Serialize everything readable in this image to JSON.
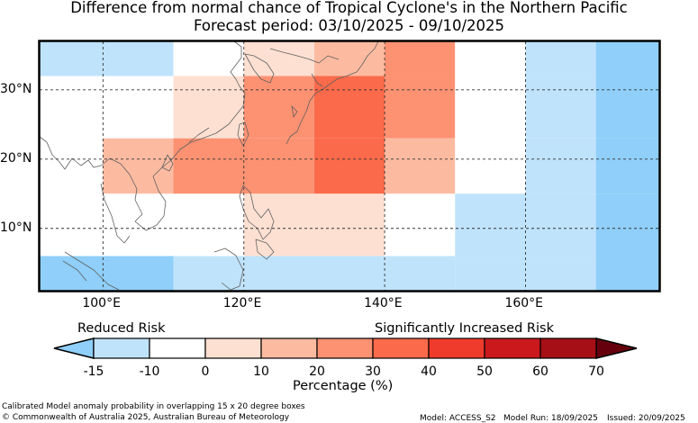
{
  "title": {
    "line1": "Difference from normal chance of Tropical Cyclone's in the Northern Pacific",
    "line2": "Forecast period: 03/10/2025 - 09/10/2025"
  },
  "map": {
    "lon_range": [
      91,
      179
    ],
    "lat_range": [
      1,
      37
    ],
    "lon_ticks": [
      {
        "value": 100,
        "label": "100°E"
      },
      {
        "value": 120,
        "label": "120°E"
      },
      {
        "value": 140,
        "label": "140°E"
      },
      {
        "value": 160,
        "label": "160°E"
      }
    ],
    "lat_ticks": [
      {
        "value": 10,
        "label": "10°N"
      },
      {
        "value": 20,
        "label": "20°N"
      },
      {
        "value": 30,
        "label": "30°N"
      }
    ],
    "cells": [
      {
        "lon": [
          91,
          110
        ],
        "lat": [
          32,
          37
        ],
        "pct": -10
      },
      {
        "lon": [
          110,
          120
        ],
        "lat": [
          32,
          37
        ],
        "pct": 0
      },
      {
        "lon": [
          120,
          130
        ],
        "lat": [
          32,
          37
        ],
        "pct": 10
      },
      {
        "lon": [
          130,
          140
        ],
        "lat": [
          32,
          37
        ],
        "pct": 20
      },
      {
        "lon": [
          140,
          150
        ],
        "lat": [
          32,
          37
        ],
        "pct": 30
      },
      {
        "lon": [
          150,
          160
        ],
        "lat": [
          32,
          37
        ],
        "pct": 0
      },
      {
        "lon": [
          160,
          170
        ],
        "lat": [
          32,
          37
        ],
        "pct": -10
      },
      {
        "lon": [
          170,
          179
        ],
        "lat": [
          32,
          37
        ],
        "pct": -15
      },
      {
        "lon": [
          91,
          100
        ],
        "lat": [
          23,
          32
        ],
        "pct": 0
      },
      {
        "lon": [
          100,
          110
        ],
        "lat": [
          23,
          32
        ],
        "pct": 0
      },
      {
        "lon": [
          110,
          120
        ],
        "lat": [
          23,
          32
        ],
        "pct": 10
      },
      {
        "lon": [
          120,
          130
        ],
        "lat": [
          23,
          32
        ],
        "pct": 30
      },
      {
        "lon": [
          130,
          140
        ],
        "lat": [
          23,
          32
        ],
        "pct": 40
      },
      {
        "lon": [
          140,
          150
        ],
        "lat": [
          23,
          32
        ],
        "pct": 30
      },
      {
        "lon": [
          150,
          160
        ],
        "lat": [
          23,
          32
        ],
        "pct": 0
      },
      {
        "lon": [
          160,
          170
        ],
        "lat": [
          23,
          32
        ],
        "pct": -10
      },
      {
        "lon": [
          170,
          179
        ],
        "lat": [
          23,
          32
        ],
        "pct": -15
      },
      {
        "lon": [
          91,
          100
        ],
        "lat": [
          15,
          23
        ],
        "pct": 0
      },
      {
        "lon": [
          100,
          110
        ],
        "lat": [
          15,
          23
        ],
        "pct": 20
      },
      {
        "lon": [
          110,
          130
        ],
        "lat": [
          15,
          23
        ],
        "pct": 30
      },
      {
        "lon": [
          130,
          140
        ],
        "lat": [
          15,
          23
        ],
        "pct": 40
      },
      {
        "lon": [
          140,
          150
        ],
        "lat": [
          15,
          23
        ],
        "pct": 20
      },
      {
        "lon": [
          150,
          160
        ],
        "lat": [
          15,
          23
        ],
        "pct": 0
      },
      {
        "lon": [
          160,
          170
        ],
        "lat": [
          15,
          23
        ],
        "pct": -10
      },
      {
        "lon": [
          170,
          179
        ],
        "lat": [
          15,
          23
        ],
        "pct": -15
      },
      {
        "lon": [
          91,
          110
        ],
        "lat": [
          6,
          15
        ],
        "pct": 0
      },
      {
        "lon": [
          110,
          120
        ],
        "lat": [
          6,
          15
        ],
        "pct": 0
      },
      {
        "lon": [
          120,
          140
        ],
        "lat": [
          6,
          15
        ],
        "pct": 10
      },
      {
        "lon": [
          140,
          150
        ],
        "lat": [
          6,
          15
        ],
        "pct": 0
      },
      {
        "lon": [
          150,
          160
        ],
        "lat": [
          6,
          15
        ],
        "pct": -5
      },
      {
        "lon": [
          160,
          170
        ],
        "lat": [
          6,
          15
        ],
        "pct": -10
      },
      {
        "lon": [
          170,
          179
        ],
        "lat": [
          6,
          15
        ],
        "pct": -15
      },
      {
        "lon": [
          91,
          110
        ],
        "lat": [
          1,
          6
        ],
        "pct": -15
      },
      {
        "lon": [
          110,
          120
        ],
        "lat": [
          1,
          6
        ],
        "pct": -10
      },
      {
        "lon": [
          120,
          150
        ],
        "lat": [
          1,
          6
        ],
        "pct": -5
      },
      {
        "lon": [
          150,
          170
        ],
        "lat": [
          1,
          6
        ],
        "pct": -10
      },
      {
        "lon": [
          170,
          179
        ],
        "lat": [
          1,
          6
        ],
        "pct": -15
      }
    ]
  },
  "colorbar": {
    "left_label": "Reduced Risk",
    "right_label": "Significantly Increased Risk",
    "ticks": [
      "-15",
      "-10",
      "0",
      "10",
      "20",
      "30",
      "40",
      "50",
      "60",
      "70"
    ],
    "colors": [
      "#bfe3fb",
      "#ffffff",
      "#fee0d2",
      "#fcbba1",
      "#fc9272",
      "#fb6a4a",
      "#ef3b2c",
      "#cb181d",
      "#a50f15"
    ],
    "under_color": "#8fcff9",
    "over_color": "#67000d",
    "xlabel": "Percentage (%)"
  },
  "colors": {
    "below_-10": "#8fcff9",
    "-10_to_0": "#bfe3fb",
    "0_to_10": "#fee0d2",
    "10_to_20": "#fcbba1",
    "20_to_30": "#fc9272",
    "30_to_40": "#fb6a4a",
    "40_to_50": "#ef3b2c",
    "neutral": "#ffffff",
    "coast": "#606060"
  },
  "footer": {
    "line1": "Calibrated Model anomaly probability in overlapping 15 x 20 degree boxes",
    "line2": "© Commonwealth of Australia 2025, Australian Bureau of Meteorology",
    "model": "Model: ACCESS_S2",
    "run": "Model Run: 18/09/2025",
    "issued": "Issued: 20/09/2025"
  }
}
